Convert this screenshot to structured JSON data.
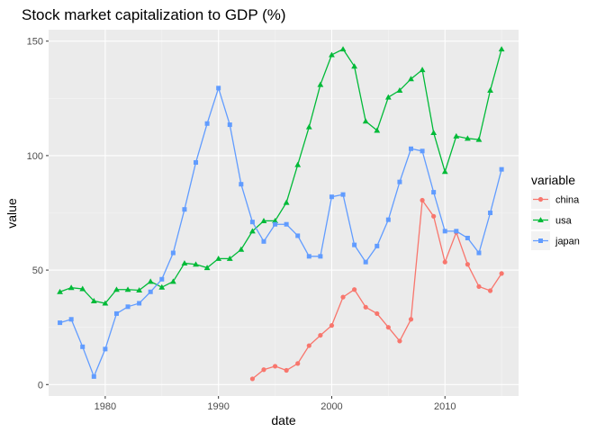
{
  "chart_data": {
    "type": "line",
    "title": "Stock market capitalization to GDP (%)",
    "xlabel": "date",
    "ylabel": "value",
    "xlim": [
      1975,
      2016.5
    ],
    "ylim": [
      -5,
      155
    ],
    "xticks": [
      1980,
      1990,
      2000,
      2010
    ],
    "yticks": [
      0,
      50,
      100,
      150
    ],
    "grid": true,
    "legend": {
      "title": "variable",
      "position": "right"
    },
    "series": [
      {
        "name": "china",
        "color": "#F8766D",
        "marker": "circle",
        "x": [
          1993,
          1994,
          1995,
          1996,
          1997,
          1998,
          1999,
          2000,
          2001,
          2002,
          2003,
          2004,
          2005,
          2006,
          2007,
          2008,
          2009,
          2010,
          2011,
          2012,
          2013,
          2014,
          2015
        ],
        "values": [
          2.5,
          6.5,
          8,
          6.2,
          9.2,
          17,
          21.5,
          25.8,
          38.2,
          41.5,
          33.8,
          31,
          25,
          19,
          28.5,
          80.5,
          73.5,
          53.5,
          66.5,
          52.5,
          42.8,
          41,
          48.5
        ]
      },
      {
        "name": "usa",
        "color": "#00BA38",
        "marker": "triangle",
        "x": [
          1976,
          1977,
          1978,
          1979,
          1980,
          1981,
          1982,
          1983,
          1984,
          1985,
          1986,
          1987,
          1988,
          1989,
          1990,
          1991,
          1992,
          1993,
          1994,
          1995,
          1996,
          1997,
          1998,
          1999,
          2000,
          2001,
          2002,
          2003,
          2004,
          2005,
          2006,
          2007,
          2008,
          2009,
          2010,
          2011,
          2012,
          2013,
          2014,
          2015
        ],
        "values": [
          40.5,
          42.3,
          41.8,
          36.5,
          35.5,
          41.5,
          41.5,
          41.2,
          45,
          42.5,
          45,
          53,
          52.5,
          51,
          55,
          55,
          59,
          67,
          71.5,
          71.5,
          79.5,
          96,
          112.5,
          131,
          144,
          146.5,
          139,
          115,
          111,
          125.5,
          128.5,
          133.5,
          137.5,
          110,
          93,
          108.5,
          107.5,
          107,
          128.5,
          146.5
        ]
      },
      {
        "name": "japan",
        "color": "#619CFF",
        "marker": "square",
        "x": [
          1976,
          1977,
          1978,
          1979,
          1980,
          1981,
          1982,
          1983,
          1984,
          1985,
          1986,
          1987,
          1988,
          1989,
          1990,
          1991,
          1992,
          1993,
          1994,
          1995,
          1996,
          1997,
          1998,
          1999,
          2000,
          2001,
          2002,
          2003,
          2004,
          2005,
          2006,
          2007,
          2008,
          2009,
          2010,
          2011,
          2012,
          2013,
          2014,
          2015
        ],
        "values": [
          27,
          28.5,
          16.5,
          3.5,
          15.5,
          31,
          34,
          35.5,
          40.5,
          46,
          57.5,
          76.5,
          97,
          114,
          129.5,
          113.5,
          87.5,
          71,
          62.5,
          70,
          70,
          65,
          56,
          56,
          82,
          83,
          61,
          53.5,
          60.5,
          72,
          88.5,
          103,
          102,
          84,
          67,
          67,
          64,
          57.5,
          75,
          94
        ]
      }
    ]
  }
}
